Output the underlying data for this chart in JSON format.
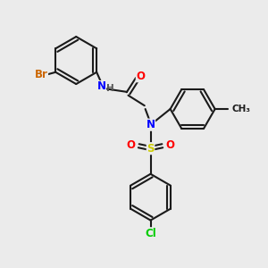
{
  "bg_color": "#ebebeb",
  "bond_color": "#1a1a1a",
  "bond_width": 1.5,
  "atom_colors": {
    "Br": "#cc6600",
    "N": "#0000ff",
    "O": "#ff0000",
    "S": "#cccc00",
    "Cl": "#00cc00",
    "H": "#555555",
    "C": "#1a1a1a"
  },
  "font_size_atom": 8.5
}
